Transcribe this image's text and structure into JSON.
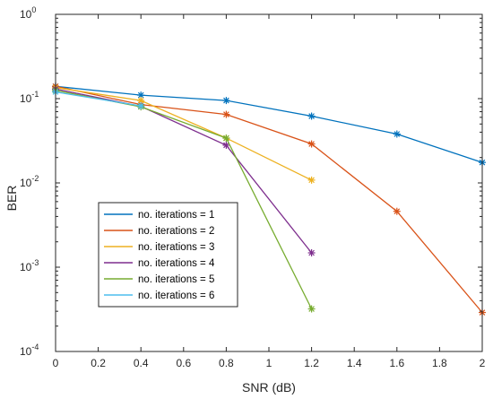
{
  "chart_data": {
    "type": "line",
    "xlabel": "SNR (dB)",
    "ylabel": "BER",
    "xlim": [
      0,
      2
    ],
    "ylim": [
      0.0001,
      1
    ],
    "y_scale": "log",
    "grid": false,
    "box": true,
    "legend_position": "lower-left",
    "x_ticks": [
      0,
      0.2,
      0.4,
      0.6,
      0.8,
      1.0,
      1.2,
      1.4,
      1.6,
      1.8,
      2.0
    ],
    "x_tick_labels": [
      "0",
      "0.2",
      "0.4",
      "0.6",
      "0.8",
      "1",
      "1.2",
      "1.4",
      "1.6",
      "1.8",
      "2"
    ],
    "y_ticks": [
      {
        "value": 1,
        "base": "10",
        "exp": "0"
      },
      {
        "value": 0.1,
        "base": "10",
        "exp": "-1"
      },
      {
        "value": 0.01,
        "base": "10",
        "exp": "-2"
      },
      {
        "value": 0.001,
        "base": "10",
        "exp": "-3"
      },
      {
        "value": 0.0001,
        "base": "10",
        "exp": "-4"
      }
    ],
    "marker": "asterisk",
    "series": [
      {
        "name": "no. iterations = 1",
        "color": "#0072BD",
        "x": [
          0,
          0.4,
          0.8,
          1.2,
          1.6,
          2.0
        ],
        "y": [
          0.14,
          0.11,
          0.095,
          0.062,
          0.038,
          0.0175
        ]
      },
      {
        "name": "no. iterations = 2",
        "color": "#D95319",
        "x": [
          0,
          0.4,
          0.8,
          1.2,
          1.6,
          2.0
        ],
        "y": [
          0.14,
          0.085,
          0.065,
          0.029,
          0.0046,
          0.00029
        ]
      },
      {
        "name": "no. iterations = 3",
        "color": "#EDB120",
        "x": [
          0,
          0.4,
          0.8,
          1.2
        ],
        "y": [
          0.135,
          0.095,
          0.034,
          0.0108
        ]
      },
      {
        "name": "no. iterations = 4",
        "color": "#7E2F8E",
        "x": [
          0,
          0.4,
          0.8,
          1.2
        ],
        "y": [
          0.13,
          0.081,
          0.028,
          0.00148
        ]
      },
      {
        "name": "no. iterations = 5",
        "color": "#77AC30",
        "x": [
          0,
          0.4,
          0.8,
          1.2
        ],
        "y": [
          0.125,
          0.08,
          0.034,
          0.00032
        ]
      },
      {
        "name": "no. iterations = 6",
        "color": "#4DBEEE",
        "x": [
          0,
          0.4
        ],
        "y": [
          0.12,
          0.082
        ]
      }
    ]
  }
}
